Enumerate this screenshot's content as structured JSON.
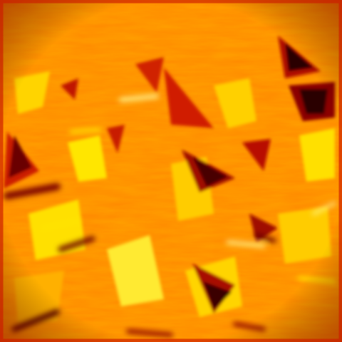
{
  "image": {
    "palette": {
      "deep": "#2a0000",
      "dark_red": "#8b0000",
      "red": "#cc1a00",
      "red_orange": "#e83a00",
      "orange": "#ff7a00",
      "amber": "#ffa000",
      "gold": "#ffc000",
      "yellow": "#ffe600",
      "pale": "#fff48a"
    }
  }
}
